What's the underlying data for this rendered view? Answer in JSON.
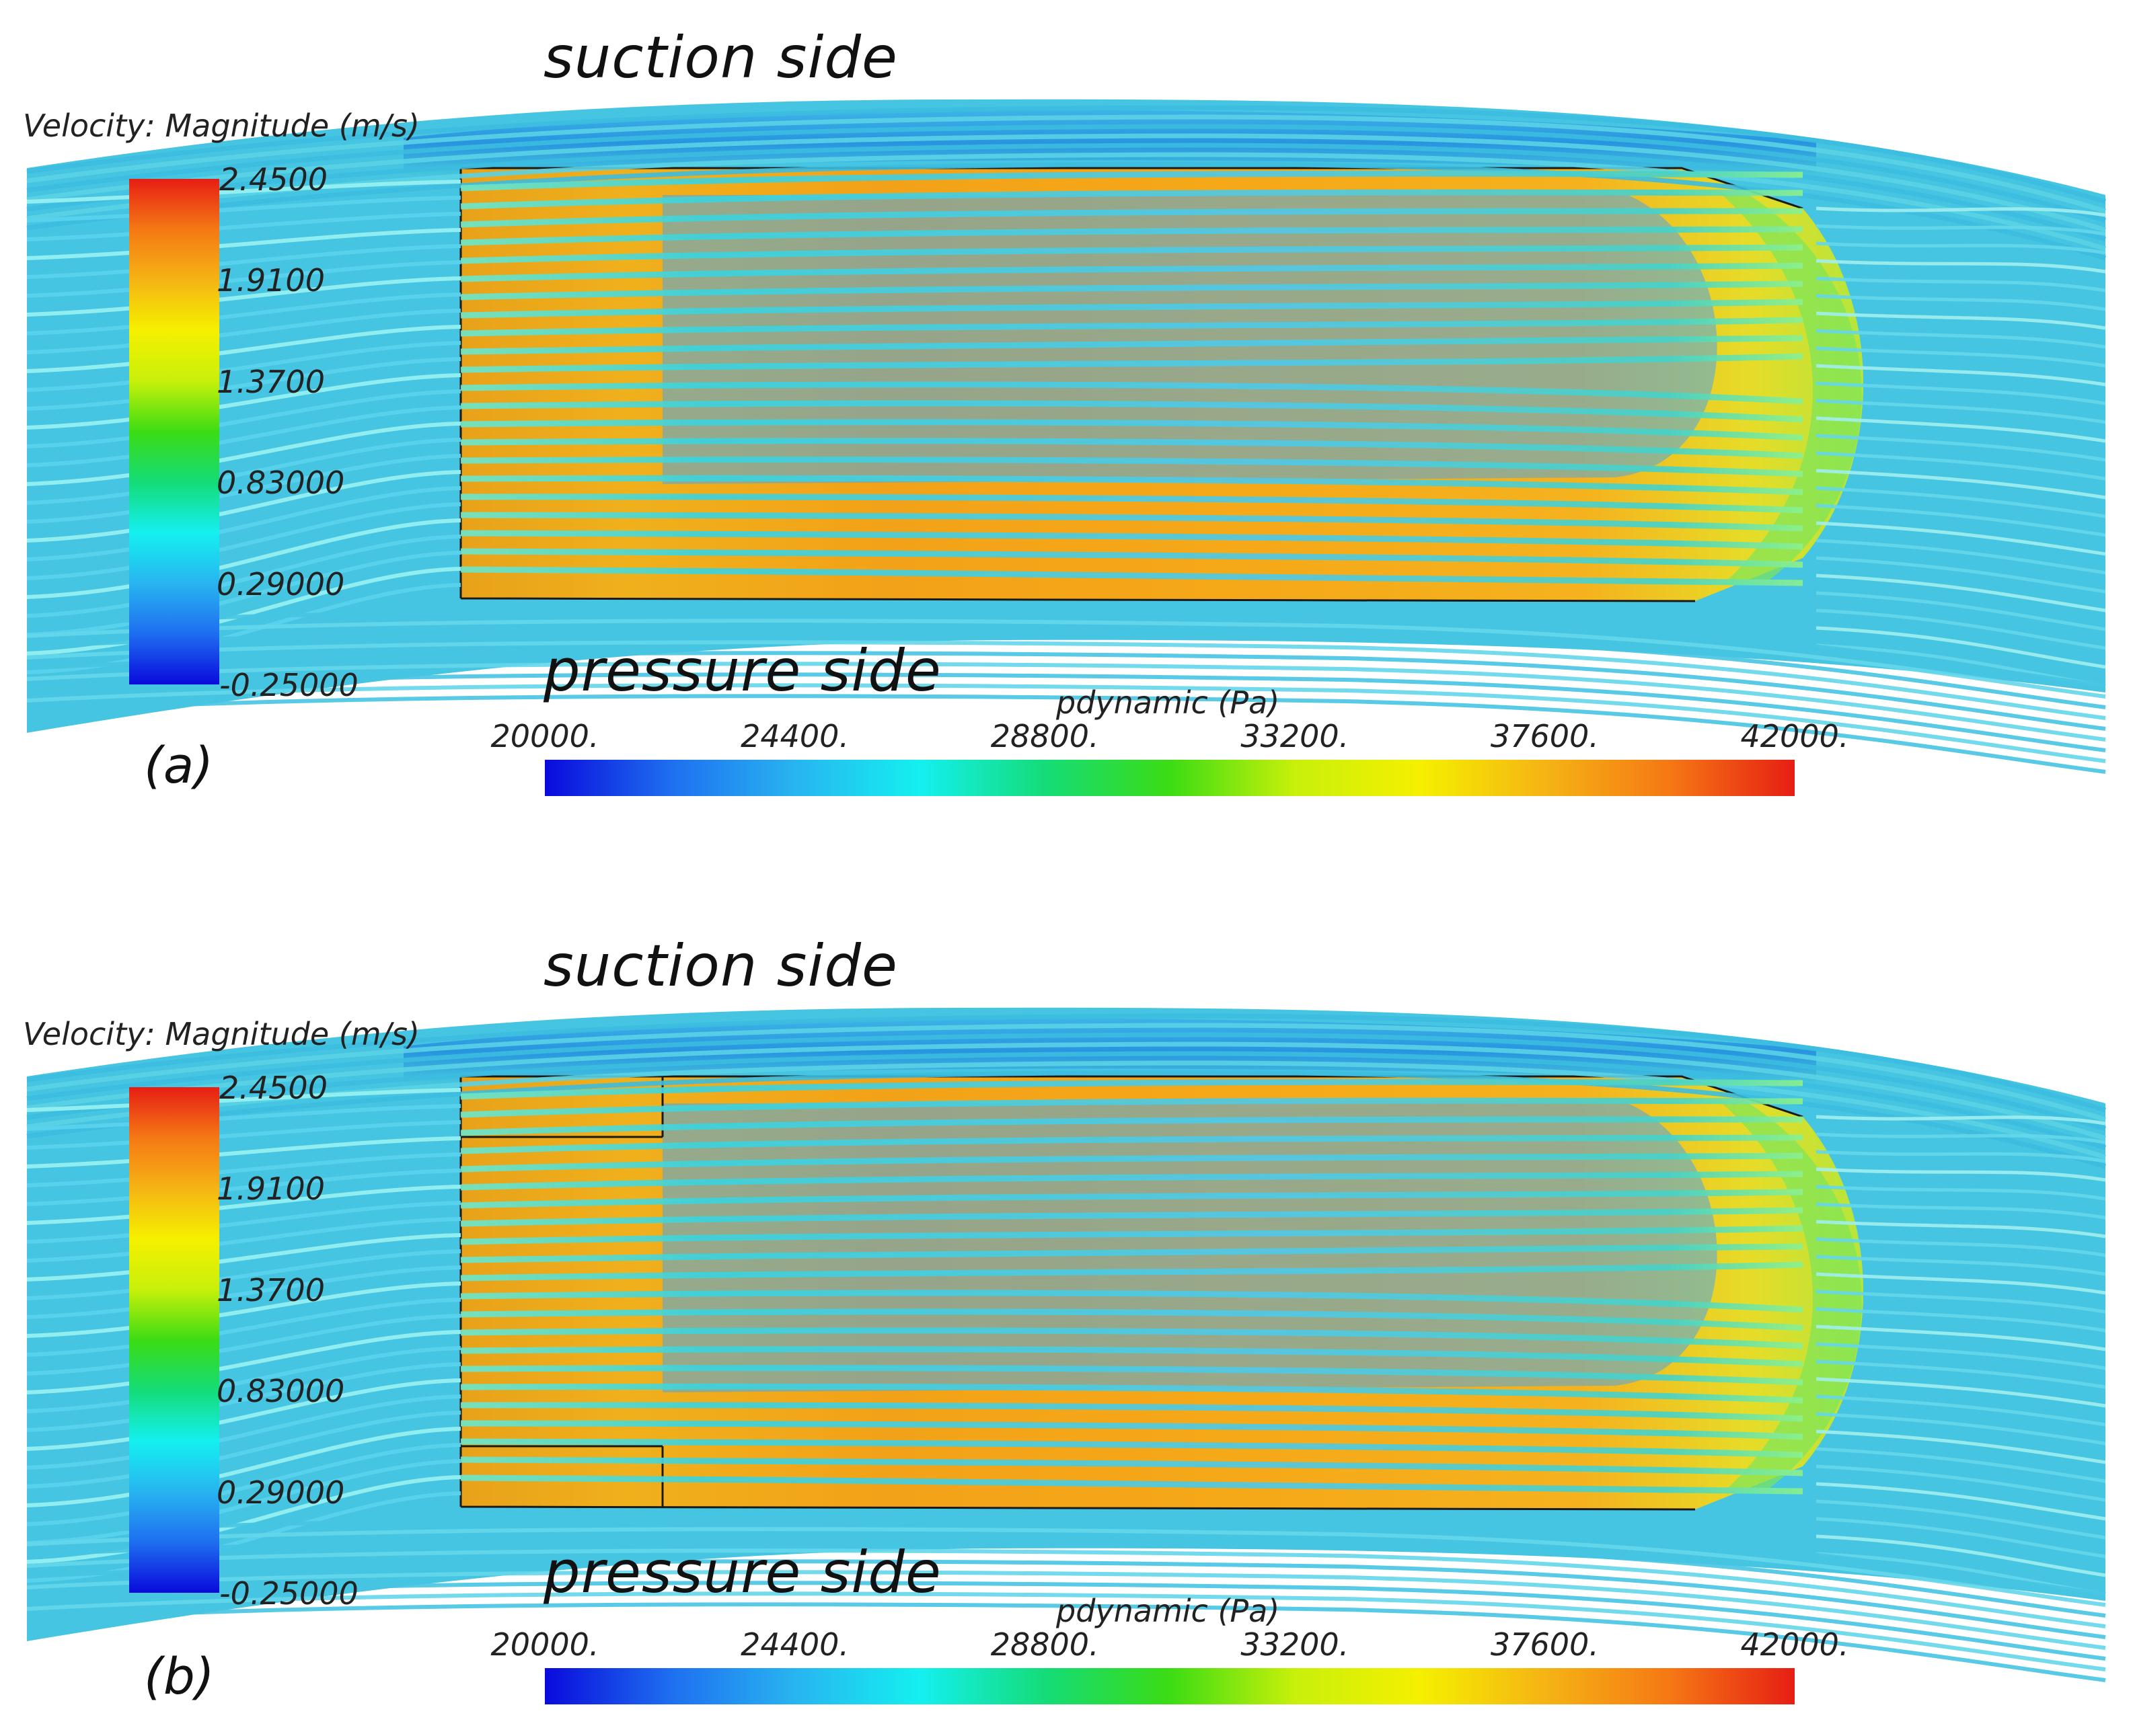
{
  "panels": [
    {
      "tag": "(a)",
      "suction_label": "suction side",
      "pressure_label": "pressure side",
      "velocity_legend": {
        "title": "Velocity: Magnitude (m/s)",
        "ticks": [
          "2.4500",
          "1.9100",
          "1.3700",
          "0.83000",
          "0.29000",
          "-0.25000"
        ]
      },
      "pressure_legend": {
        "title": "pdynamic (Pa)",
        "ticks": [
          "20000.",
          "24400.",
          "28800.",
          "33200.",
          "37600.",
          "42000."
        ]
      }
    },
    {
      "tag": "(b)",
      "suction_label": "suction side",
      "pressure_label": "pressure side",
      "velocity_legend": {
        "title": "Velocity: Magnitude (m/s)",
        "ticks": [
          "2.4500",
          "1.9100",
          "1.3700",
          "0.83000",
          "0.29000",
          "-0.25000"
        ]
      },
      "pressure_legend": {
        "title": "pdynamic (Pa)",
        "ticks": [
          "20000.",
          "24400.",
          "28800.",
          "33200.",
          "37600.",
          "42000."
        ]
      }
    }
  ],
  "colors": {
    "colormap": [
      "#0a0adc",
      "#1e6ef0",
      "#28b4f0",
      "#14f0f0",
      "#14dc78",
      "#3cdc14",
      "#c8f00a",
      "#f5f000",
      "#f5b414",
      "#f57814",
      "#e61e14"
    ],
    "outline": "#1a1a1a"
  }
}
